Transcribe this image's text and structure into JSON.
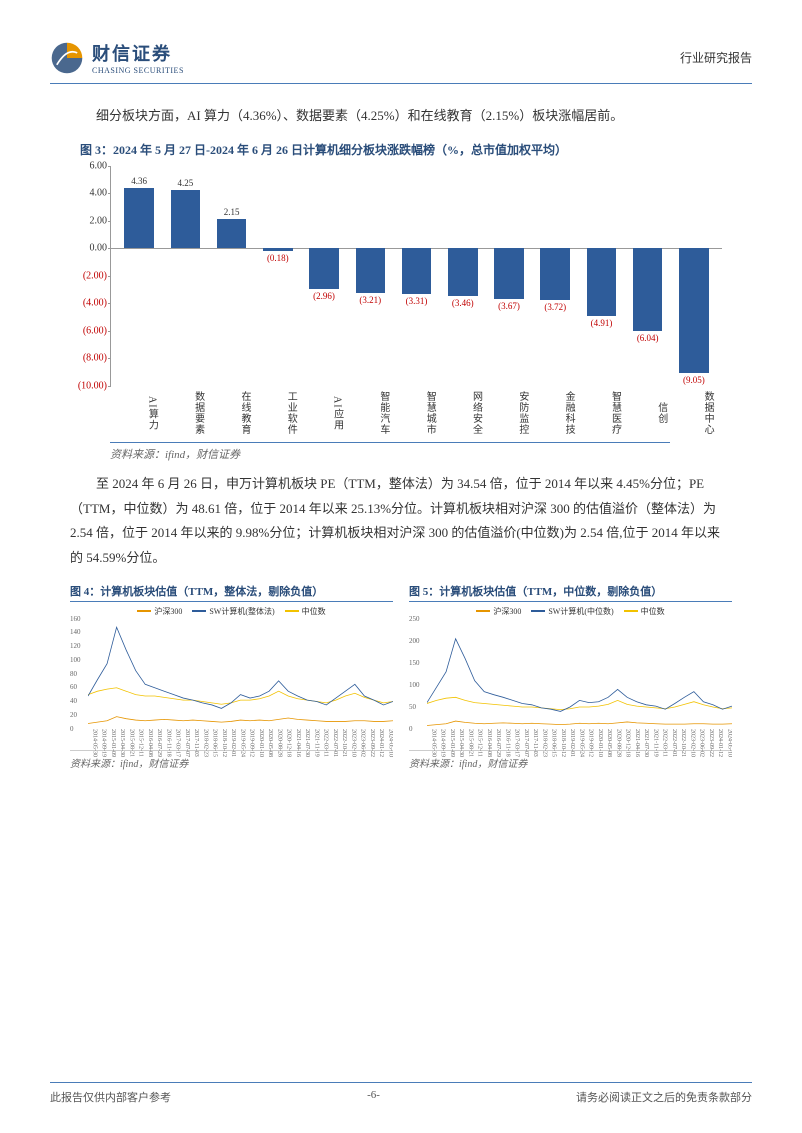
{
  "header": {
    "logo_cn": "财信证券",
    "logo_en": "CHASING SECURITIES",
    "right_text": "行业研究报告"
  },
  "colors": {
    "brand_blue": "#2a4d7a",
    "bar_fill": "#2e5c9a",
    "neg_text": "#c00000",
    "line_blue": "#2e5c9a",
    "line_orange": "#e69500",
    "line_yellow": "#f2c200"
  },
  "para1": "细分板块方面，AI 算力（4.36%）、数据要素（4.25%）和在线教育（2.15%）板块涨幅居前。",
  "fig3": {
    "title": "图 3：2024 年 5 月 27 日-2024 年 6 月 26 日计算机细分板块涨跌幅榜（%，总市值加权平均）",
    "source": "资料来源：ifind，财信证券",
    "y_ticks": [
      6,
      4,
      2,
      0,
      -2,
      -4,
      -6,
      -8,
      -10
    ],
    "y_fmt": [
      "6.00",
      "4.00",
      "2.00",
      "0.00",
      "(2.00)",
      "(4.00)",
      "(6.00)",
      "(8.00)",
      "(10.00)"
    ],
    "ymin": -10,
    "ymax": 6,
    "bars": [
      {
        "cat": "AI算力",
        "val": 4.36,
        "lbl": "4.36"
      },
      {
        "cat": "数据要素",
        "val": 4.25,
        "lbl": "4.25"
      },
      {
        "cat": "在线教育",
        "val": 2.15,
        "lbl": "2.15"
      },
      {
        "cat": "工业软件",
        "val": -0.18,
        "lbl": "(0.18)"
      },
      {
        "cat": "AI应用",
        "val": -2.96,
        "lbl": "(2.96)"
      },
      {
        "cat": "智能汽车",
        "val": -3.21,
        "lbl": "(3.21)"
      },
      {
        "cat": "智慧城市",
        "val": -3.31,
        "lbl": "(3.31)"
      },
      {
        "cat": "网络安全",
        "val": -3.46,
        "lbl": "(3.46)"
      },
      {
        "cat": "安防监控",
        "val": -3.67,
        "lbl": "(3.67)"
      },
      {
        "cat": "金融科技",
        "val": -3.72,
        "lbl": "(3.72)"
      },
      {
        "cat": "智慧医疗",
        "val": -4.91,
        "lbl": "(4.91)"
      },
      {
        "cat": "信创",
        "val": -6.04,
        "lbl": "(6.04)"
      },
      {
        "cat": "数据中心",
        "val": -9.05,
        "lbl": "(9.05)"
      }
    ]
  },
  "para2": "至 2024 年 6 月 26 日，申万计算机板块 PE（TTM，整体法）为 34.54 倍，位于 2014 年以来 4.45%分位；PE（TTM，中位数）为 48.61 倍，位于 2014 年以来 25.13%分位。计算机板块相对沪深 300 的估值溢价（整体法）为 2.54 倍，位于 2014 年以来的 9.98%分位；计算机板块相对沪深 300 的估值溢价(中位数)为 2.54 倍,位于 2014 年以来的 54.59%分位。",
  "fig4": {
    "title": "图 4：计算机板块估值（TTM，整体法，剔除负值）",
    "legend": [
      "沪深300",
      "SW计算机(整体法)",
      "中位数"
    ],
    "y_ticks": [
      0,
      20,
      40,
      60,
      80,
      100,
      120,
      140,
      160
    ],
    "ymax": 160,
    "source": "资料来源：ifind，财信证券"
  },
  "fig5": {
    "title": "图 5：计算机板块估值（TTM，中位数，剔除负值）",
    "legend": [
      "沪深300",
      "SW计算机(中位数)",
      "中位数"
    ],
    "y_ticks": [
      0,
      50,
      100,
      150,
      200,
      250
    ],
    "ymax": 250,
    "source": "资料来源：ifind，财信证券"
  },
  "mini_x_dates": [
    "2014-05-30",
    "2014-09-19",
    "2015-01-09",
    "2015-04-30",
    "2015-08-21",
    "2015-12-11",
    "2016-04-08",
    "2016-07-29",
    "2016-11-18",
    "2017-03-17",
    "2017-07-07",
    "2017-11-03",
    "2018-02-23",
    "2018-06-15",
    "2018-10-12",
    "2019-02-01",
    "2019-05-24",
    "2019-09-12",
    "2020-01-10",
    "2020-05-08",
    "2020-08-28",
    "2020-12-18",
    "2021-04-16",
    "2021-07-30",
    "2021-11-19",
    "2022-03-11",
    "2022-07-01",
    "2022-10-21",
    "2023-02-10",
    "2023-06-02",
    "2023-09-22",
    "2024-01-12",
    "2024-05-10"
  ],
  "line4_hs300": [
    8,
    10,
    12,
    18,
    15,
    13,
    12,
    13,
    14,
    13,
    12,
    13,
    12,
    11,
    10,
    11,
    13,
    12,
    13,
    12,
    14,
    16,
    14,
    13,
    12,
    11,
    11,
    11,
    12,
    12,
    11,
    11,
    12
  ],
  "line4_sw": [
    48,
    72,
    95,
    148,
    115,
    85,
    65,
    60,
    55,
    50,
    45,
    42,
    38,
    35,
    30,
    38,
    50,
    45,
    48,
    55,
    70,
    55,
    48,
    42,
    40,
    35,
    45,
    55,
    65,
    48,
    42,
    35,
    40
  ],
  "line4_mid": [
    50,
    55,
    58,
    60,
    55,
    50,
    48,
    48,
    46,
    44,
    42,
    42,
    40,
    38,
    36,
    38,
    42,
    42,
    44,
    48,
    55,
    48,
    44,
    42,
    40,
    38,
    42,
    48,
    52,
    46,
    42,
    38,
    40
  ],
  "line5_hs300": [
    8,
    10,
    12,
    18,
    15,
    13,
    12,
    13,
    14,
    13,
    12,
    13,
    12,
    11,
    10,
    11,
    13,
    12,
    13,
    12,
    14,
    16,
    14,
    13,
    12,
    11,
    11,
    11,
    12,
    12,
    11,
    11,
    12
  ],
  "line5_sw": [
    60,
    95,
    130,
    205,
    160,
    110,
    85,
    78,
    72,
    65,
    58,
    55,
    48,
    45,
    40,
    50,
    65,
    60,
    62,
    72,
    90,
    72,
    62,
    55,
    52,
    45,
    58,
    72,
    85,
    62,
    55,
    45,
    52
  ],
  "line5_mid": [
    58,
    65,
    70,
    72,
    65,
    60,
    58,
    56,
    54,
    52,
    50,
    50,
    48,
    46,
    44,
    46,
    50,
    50,
    52,
    56,
    65,
    56,
    52,
    50,
    48,
    46,
    50,
    56,
    62,
    55,
    50,
    46,
    48
  ],
  "footer": {
    "left": "此报告仅供内部客户参考",
    "center": "-6-",
    "right": "请务必阅读正文之后的免责条款部分"
  }
}
